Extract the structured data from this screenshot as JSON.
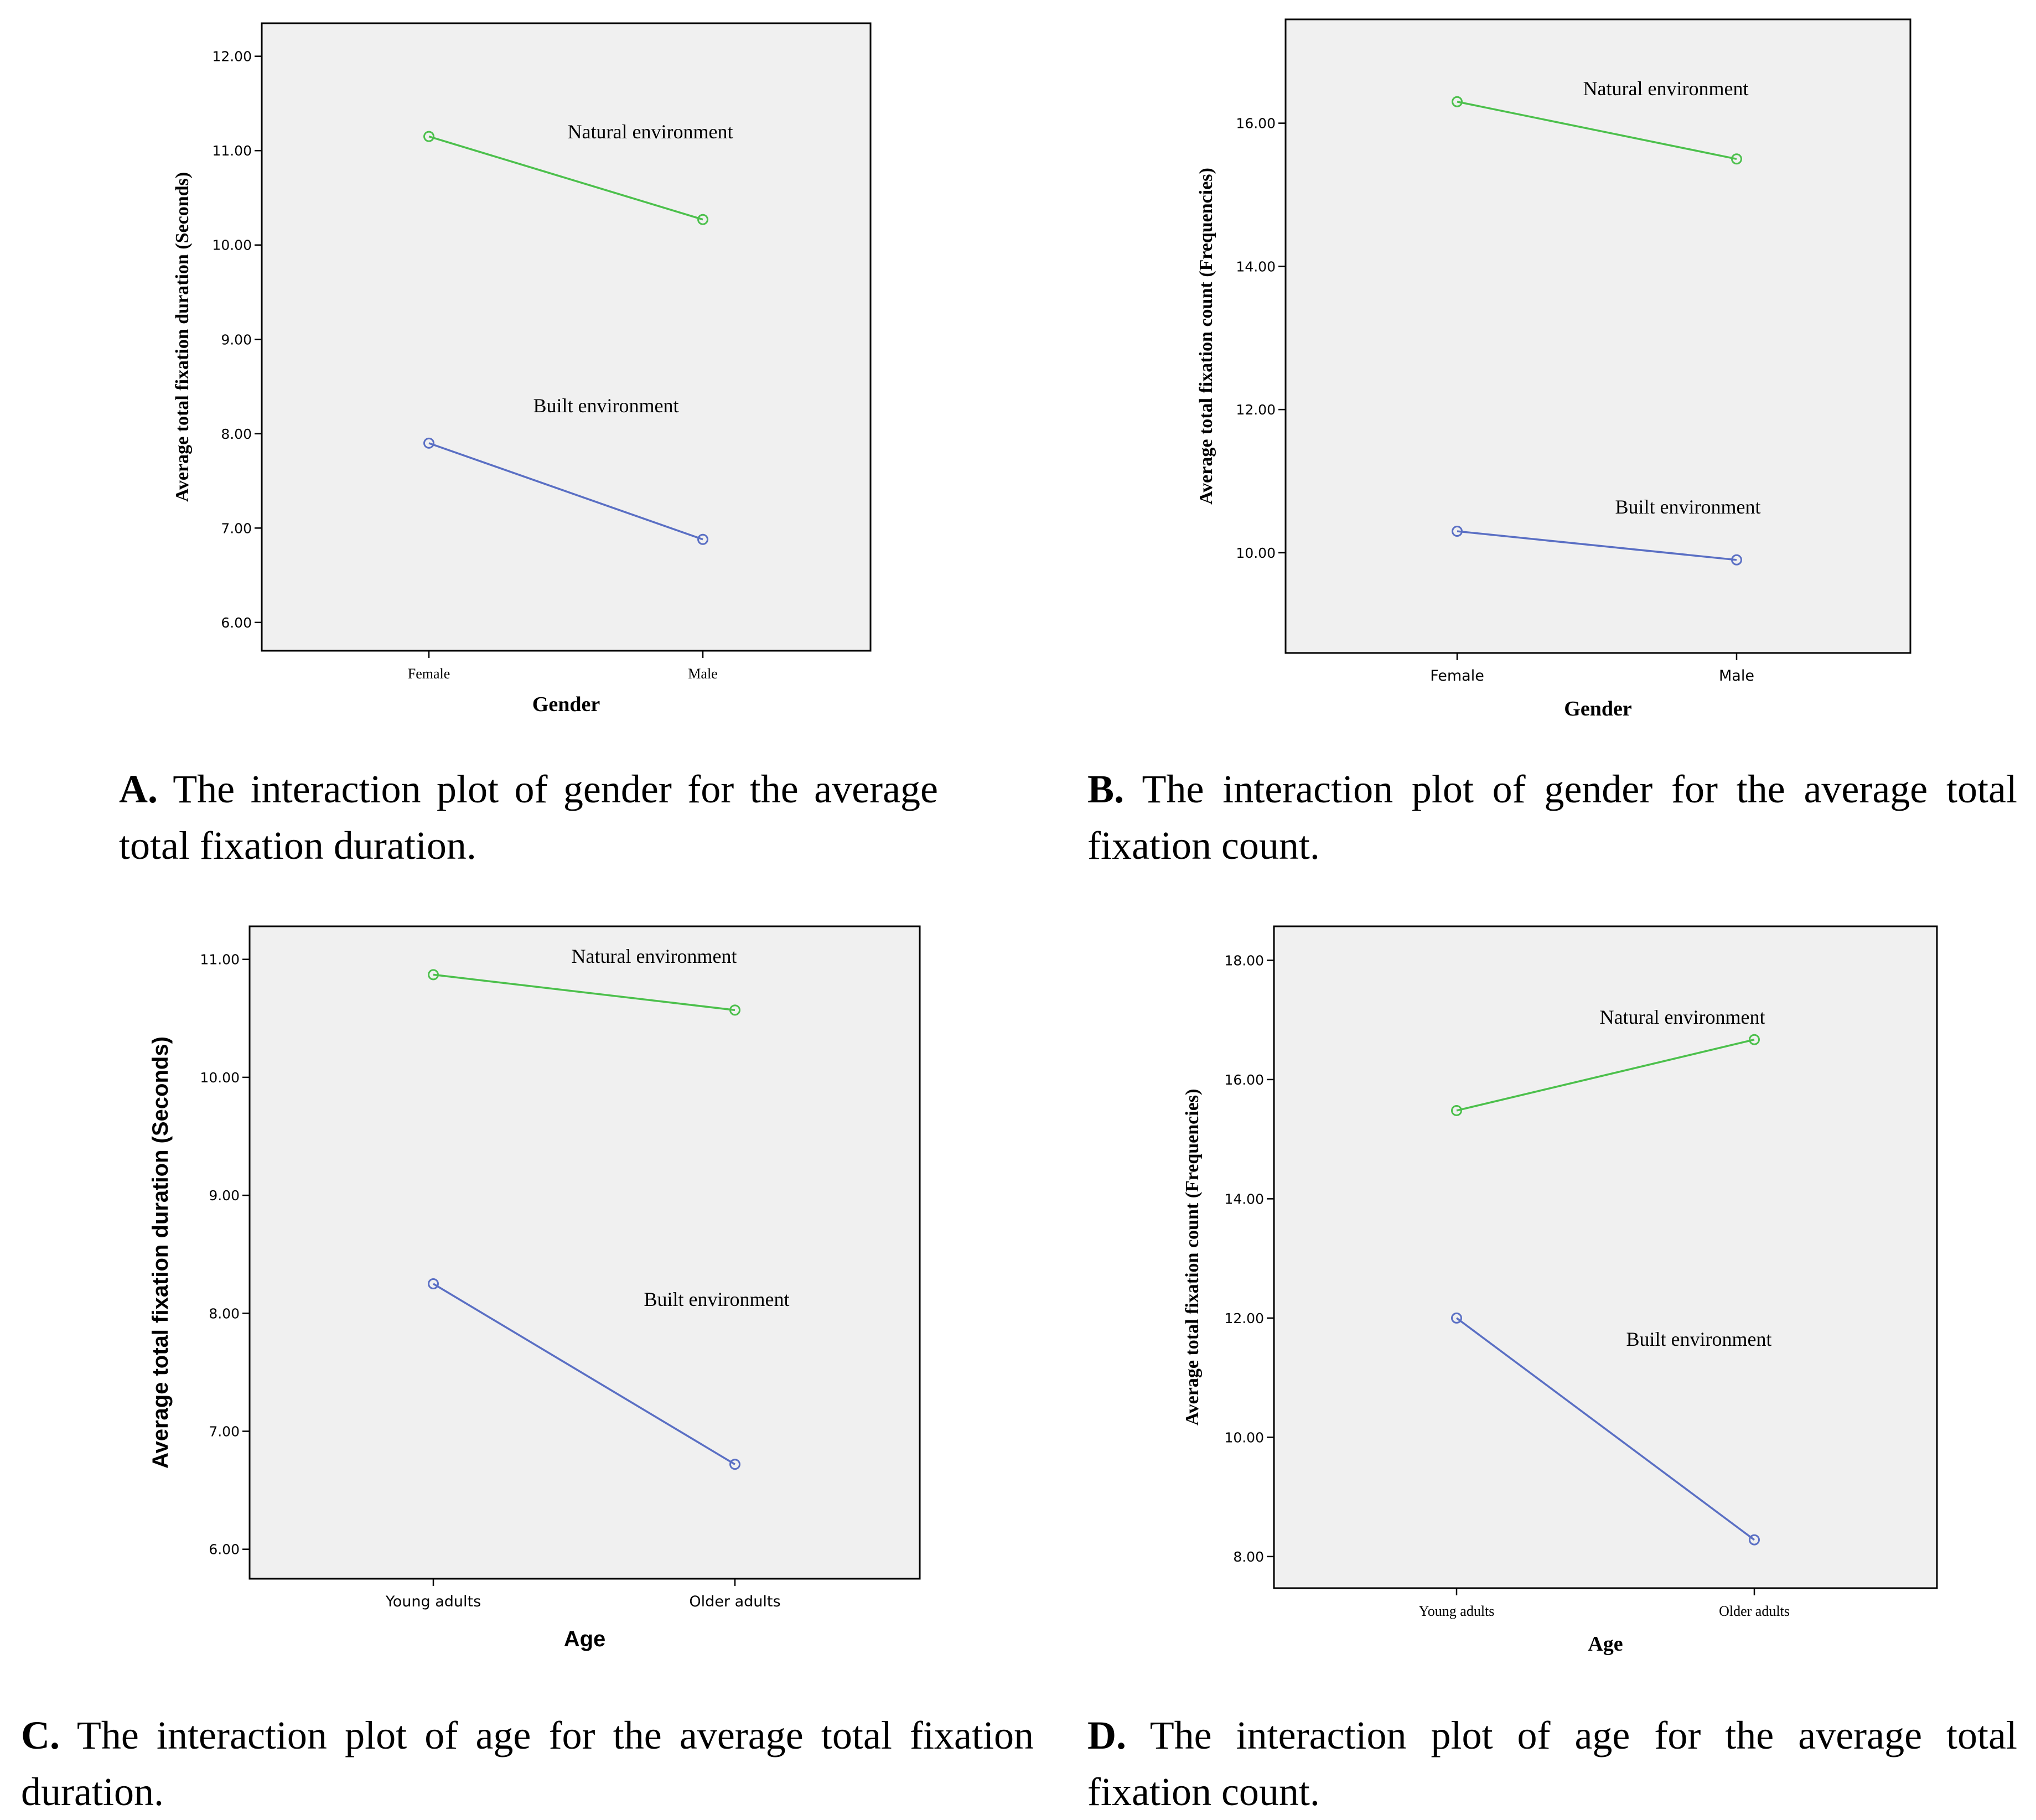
{
  "chart_data": [
    {
      "id": "A",
      "type": "line",
      "xlabel": "Gender",
      "ylabel": "Average total fixation duration (Seconds)",
      "categories": [
        "Female",
        "Male"
      ],
      "ylim": [
        5.7,
        12.35
      ],
      "yticks": [
        6,
        7,
        8,
        9,
        10,
        11,
        12
      ],
      "ytick_labels": [
        "6.00",
        "7.00",
        "8.00",
        "9.00",
        "10.00",
        "11.00",
        "12.00"
      ],
      "series": [
        {
          "name": "Natural environment",
          "color": "#4cc04c",
          "values": [
            11.15,
            10.27
          ]
        },
        {
          "name": "Built environment",
          "color": "#5a6fc4",
          "values": [
            7.9,
            6.88
          ]
        }
      ],
      "caption_letter": "A.",
      "caption_text": "The interaction plot of gender for the average total fixation duration."
    },
    {
      "id": "B",
      "type": "line",
      "xlabel": "Gender",
      "ylabel": "Average total fixation count (Frequencies)",
      "categories": [
        "Female",
        "Male"
      ],
      "ylim": [
        8.6,
        17.45
      ],
      "yticks": [
        10,
        12,
        14,
        16
      ],
      "ytick_labels": [
        "10.00",
        "12.00",
        "14.00",
        "16.00"
      ],
      "series": [
        {
          "name": "Natural environment",
          "color": "#4cc04c",
          "values": [
            16.3,
            15.5
          ]
        },
        {
          "name": "Built environment",
          "color": "#5a6fc4",
          "values": [
            10.3,
            9.9
          ]
        }
      ],
      "caption_letter": "B.",
      "caption_text": "The interaction plot of gender for the average total fixation count."
    },
    {
      "id": "C",
      "type": "line",
      "xlabel": "Age",
      "ylabel": "Average total fixation duration (Seconds)",
      "categories": [
        "Young adults",
        "Older adults"
      ],
      "ylim": [
        5.75,
        11.28
      ],
      "yticks": [
        6,
        7,
        8,
        9,
        10,
        11
      ],
      "ytick_labels": [
        "6.00",
        "7.00",
        "8.00",
        "9.00",
        "10.00",
        "11.00"
      ],
      "series": [
        {
          "name": "Natural environment",
          "color": "#4cc04c",
          "values": [
            10.87,
            10.57
          ]
        },
        {
          "name": "Built environment",
          "color": "#5a6fc4",
          "values": [
            8.25,
            6.72
          ]
        }
      ],
      "caption_letter": "C.",
      "caption_text": "The interaction plot of age for the average total fixation duration."
    },
    {
      "id": "D",
      "type": "line",
      "xlabel": "Age",
      "ylabel": "Average total fixation count (Frequencies)",
      "categories": [
        "Young adults",
        "Older adults"
      ],
      "ylim": [
        7.47,
        18.57
      ],
      "yticks": [
        8,
        10,
        12,
        14,
        16,
        18
      ],
      "ytick_labels": [
        "8.00",
        "10.00",
        "12.00",
        "14.00",
        "16.00",
        "18.00"
      ],
      "series": [
        {
          "name": "Natural environment",
          "color": "#4cc04c",
          "values": [
            15.48,
            16.67
          ]
        },
        {
          "name": "Built environment",
          "color": "#5a6fc4",
          "values": [
            12.0,
            8.28
          ]
        }
      ],
      "caption_letter": "D.",
      "caption_text": "The interaction plot of age for the average total fixation count."
    }
  ]
}
